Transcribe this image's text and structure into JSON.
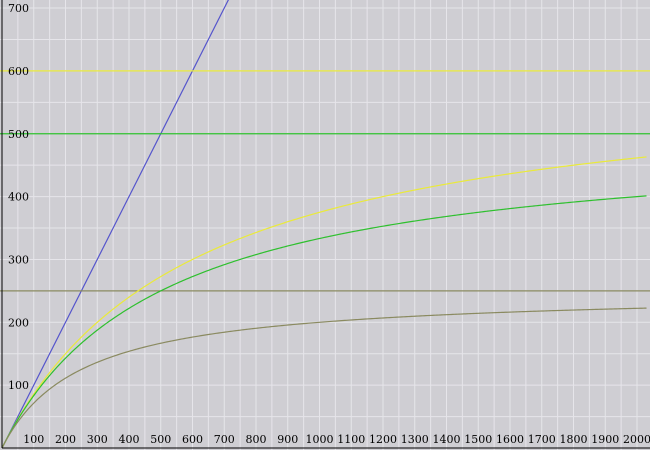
{
  "chart_data": {
    "type": "line",
    "title": "",
    "xlabel": "",
    "ylabel": "",
    "xlim": [
      0,
      2030
    ],
    "ylim": [
      0,
      715
    ],
    "grid": true,
    "x_ticks": [
      100,
      200,
      300,
      400,
      500,
      600,
      700,
      800,
      900,
      1000,
      1100,
      1200,
      1300,
      1400,
      1500,
      1600,
      1700,
      1800,
      1900,
      2000
    ],
    "y_ticks": [
      100,
      200,
      300,
      400,
      500,
      600,
      700
    ],
    "series": [
      {
        "kind": "linear",
        "slope": 1,
        "color": "#5555cc"
      },
      {
        "kind": "constant",
        "value": 600,
        "color": "#eaea3a"
      },
      {
        "kind": "constant",
        "value": 500,
        "color": "#2ec02e"
      },
      {
        "kind": "constant",
        "value": 250,
        "color": "#8a8a60"
      },
      {
        "kind": "saturating",
        "vmax": 600,
        "km": 600,
        "color": "#eaea3a",
        "points": [
          [
            0,
            0
          ],
          [
            200,
            150
          ],
          [
            400,
            240
          ],
          [
            500,
            273
          ],
          [
            600,
            300
          ],
          [
            1000,
            375
          ],
          [
            1500,
            429
          ],
          [
            2000,
            462
          ]
        ]
      },
      {
        "kind": "saturating",
        "vmax": 500,
        "km": 500,
        "color": "#2ec02e",
        "points": [
          [
            0,
            0
          ],
          [
            200,
            143
          ],
          [
            500,
            250
          ],
          [
            1000,
            333
          ],
          [
            1500,
            375
          ],
          [
            2000,
            400
          ]
        ]
      },
      {
        "kind": "saturating",
        "vmax": 250,
        "km": 250,
        "color": "#8a8a60",
        "points": [
          [
            0,
            0
          ],
          [
            250,
            125
          ],
          [
            500,
            167
          ],
          [
            1000,
            200
          ],
          [
            1500,
            214
          ],
          [
            2000,
            222
          ]
        ]
      }
    ]
  }
}
